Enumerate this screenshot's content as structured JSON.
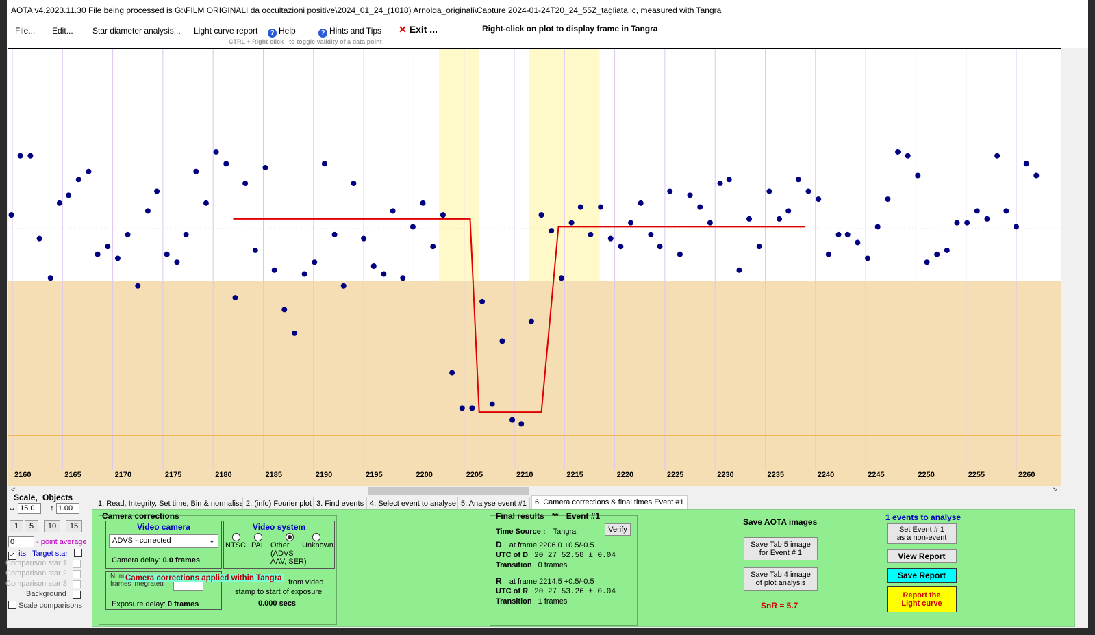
{
  "window": {
    "title": "AOTA v4.2023.11.30    File being processed is G:\\FILM ORIGINALI da occultazioni positive\\2024_01_24_(1018) Arnolda_originali\\Capture 2024-01-24T20_24_55Z_tagliata.lc, measured with Tangra"
  },
  "menu": {
    "file": "File...",
    "edit": "Edit...",
    "star_diameter": "Star diameter analysis...",
    "light_curve_report": "Light curve report",
    "help": "Help",
    "hints": "Hints and Tips",
    "exit": "Exit ...",
    "right_click_hint": "Right-click on plot to display frame in Tangra",
    "ctrl_hint": "CTRL + Right-click  -  to toggle validity of a data point"
  },
  "chart_data": {
    "type": "scatter",
    "x_ticks": [
      2160,
      2165,
      2170,
      2175,
      2180,
      2185,
      2190,
      2195,
      2200,
      2205,
      2210,
      2215,
      2220,
      2225,
      2230,
      2235,
      2240,
      2245,
      2250,
      2255,
      2260
    ],
    "xlim": [
      2160,
      2263
    ],
    "ylim": [
      0,
      1
    ],
    "points_x": [
      2159.9,
      2160.8,
      2161.8,
      2162.7,
      2163.8,
      2164.7,
      2165.6,
      2166.6,
      2167.6,
      2168.5,
      2169.5,
      2170.5,
      2171.5,
      2172.5,
      2173.5,
      2174.4,
      2175.4,
      2176.4,
      2177.3,
      2178.3,
      2179.3,
      2180.3,
      2181.3,
      2182.2,
      2183.2,
      2184.2,
      2185.2,
      2186.1,
      2187.1,
      2188.1,
      2189.1,
      2190.1,
      2191.1,
      2192.1,
      2193.0,
      2194.0,
      2195.0,
      2196.0,
      2197.0,
      2197.9,
      2198.9,
      2199.9,
      2200.9,
      2201.9,
      2202.9,
      2203.8,
      2204.8,
      2205.8,
      2206.8,
      2207.8,
      2208.8,
      2209.8,
      2210.7,
      2211.7,
      2212.7,
      2213.7,
      2214.7,
      2215.7,
      2216.6,
      2217.6,
      2218.6,
      2219.6,
      2220.6,
      2221.6,
      2222.6,
      2223.6,
      2224.5,
      2225.5,
      2226.5,
      2227.5,
      2228.5,
      2229.5,
      2230.5,
      2231.4,
      2232.4,
      2233.4,
      2234.4,
      2235.4,
      2236.4,
      2237.3,
      2238.3,
      2239.3,
      2240.3,
      2241.3,
      2242.3,
      2243.2,
      2244.2,
      2245.2,
      2246.2,
      2247.2,
      2248.2,
      2249.2,
      2250.2,
      2251.1,
      2252.1,
      2253.1,
      2254.1,
      2255.1,
      2256.1,
      2257.1,
      2258.1,
      2259.0,
      2260.0,
      2261.0,
      2262.0
    ],
    "points_y": [
      0.63,
      0.78,
      0.78,
      0.57,
      0.47,
      0.66,
      0.68,
      0.72,
      0.74,
      0.53,
      0.55,
      0.52,
      0.58,
      0.45,
      0.64,
      0.69,
      0.53,
      0.51,
      0.58,
      0.74,
      0.66,
      0.79,
      0.76,
      0.42,
      0.71,
      0.54,
      0.75,
      0.49,
      0.39,
      0.33,
      0.48,
      0.51,
      0.76,
      0.58,
      0.45,
      0.71,
      0.57,
      0.5,
      0.48,
      0.64,
      0.47,
      0.6,
      0.66,
      0.55,
      0.63,
      0.23,
      0.14,
      0.14,
      0.41,
      0.15,
      0.31,
      0.11,
      0.1,
      0.36,
      0.63,
      0.59,
      0.47,
      0.61,
      0.65,
      0.58,
      0.65,
      0.57,
      0.55,
      0.61,
      0.66,
      0.58,
      0.55,
      0.69,
      0.53,
      0.68,
      0.65,
      0.61,
      0.71,
      0.72,
      0.49,
      0.62,
      0.55,
      0.69,
      0.62,
      0.64,
      0.72,
      0.69,
      0.67,
      0.53,
      0.58,
      0.58,
      0.56,
      0.52,
      0.6,
      0.67,
      0.79,
      0.78,
      0.73,
      0.51,
      0.53,
      0.54,
      0.61,
      0.61,
      0.64,
      0.62,
      0.78,
      0.64,
      0.6,
      0.76,
      0.73
    ],
    "sqwave_x": [
      2182,
      2205.6,
      2206.5,
      2212.7,
      2214.4,
      2239
    ],
    "sqwave_y": [
      0.62,
      0.62,
      0.13,
      0.13,
      0.6,
      0.6
    ],
    "baseline_y": 0.6,
    "floor_y": 0.12,
    "shaded_regions_x": [
      [
        2202.5,
        2206.5
      ],
      [
        2211.5,
        2218.5
      ]
    ],
    "colors": {
      "points": "#000080",
      "square_wave": "#e00000",
      "baseline_orange": "#f0a020",
      "lower_band": "#f5deb3",
      "highlight": "#fff8c8",
      "tick_label": "#000000"
    }
  },
  "scrollbar": {
    "left_arrow": "<",
    "right_arrow": ">"
  },
  "left_panel": {
    "scale_label": "Scale,",
    "objects_label": "Objects",
    "scale_value": "15.0",
    "objects_value": "1.00",
    "scale_buttons": [
      "1",
      "5",
      "10",
      "15"
    ],
    "point_avg_value": "0",
    "point_avg_label": "- point average",
    "its_label": "its",
    "target_star_label": "Target star",
    "comparison_1": "Comparison star 1",
    "comparison_2": "Comparison star 2",
    "comparison_3": "Comparison star 3",
    "background": "Background",
    "scale_comparisons": "Scale comparisons"
  },
  "tabs": [
    "1.  Read, Integrity, Set time, Bin & normalise",
    "2. (info)  Fourier plot",
    "3. Find events",
    "4. Select event to analyse",
    "5. Analyse event #1",
    "6. Camera corrections & final times Event #1"
  ],
  "camera": {
    "title": "Camera corrections",
    "video_camera_title": "Video camera",
    "camera_select": "ADVS - corrected",
    "camera_delay": "Camera delay:",
    "camera_delay_value": "0.0 frames",
    "video_system_title": "Video system",
    "ntsc": "NTSC",
    "pal": "PAL",
    "other": "Other",
    "other_detail": "(ADVS\nAAV, SER)",
    "unknown": "Unknown",
    "frames_integrated_label": "Num\nframes integrated",
    "corrections_banner": "Camera corrections applied within Tangra",
    "from_video": "from video",
    "stamp_label": "stamp to start of exposure",
    "stamp_value": "0.000 secs",
    "exposure_delay": "Exposure delay:",
    "exposure_delay_value": "0 frames"
  },
  "final": {
    "title": "Final results",
    "stars": "**",
    "event": "Event #1",
    "time_source_label": "Time Source :",
    "time_source_value": "Tangra",
    "verify": "Verify",
    "d_label": "D",
    "d_frame": "at frame 2206.0  +0.5/-0.5",
    "utc_d_label": "UTC of D",
    "utc_d_value": "20 27 52.58  ± 0.04",
    "transition_label": "Transition",
    "d_transition": "0 frames",
    "r_label": "R",
    "r_frame": "at frame 2214.5  +0.5/-0.5",
    "utc_r_label": "UTC of R",
    "utc_r_value": "20 27 53.26  ± 0.04",
    "r_transition": "1 frames"
  },
  "save_images": {
    "title": "Save AOTA images",
    "tab5": "Save Tab 5 image\nfor Event # 1",
    "tab4": "Save Tab 4 image\nof plot analysis",
    "snr": "SnR = 5.7"
  },
  "events": {
    "title": "1  events to analyse",
    "set_non_event": "Set Event # 1\nas a non-event",
    "view_report": "View Report",
    "save_report": "Save Report",
    "report_lc": "Report the\nLight curve"
  }
}
